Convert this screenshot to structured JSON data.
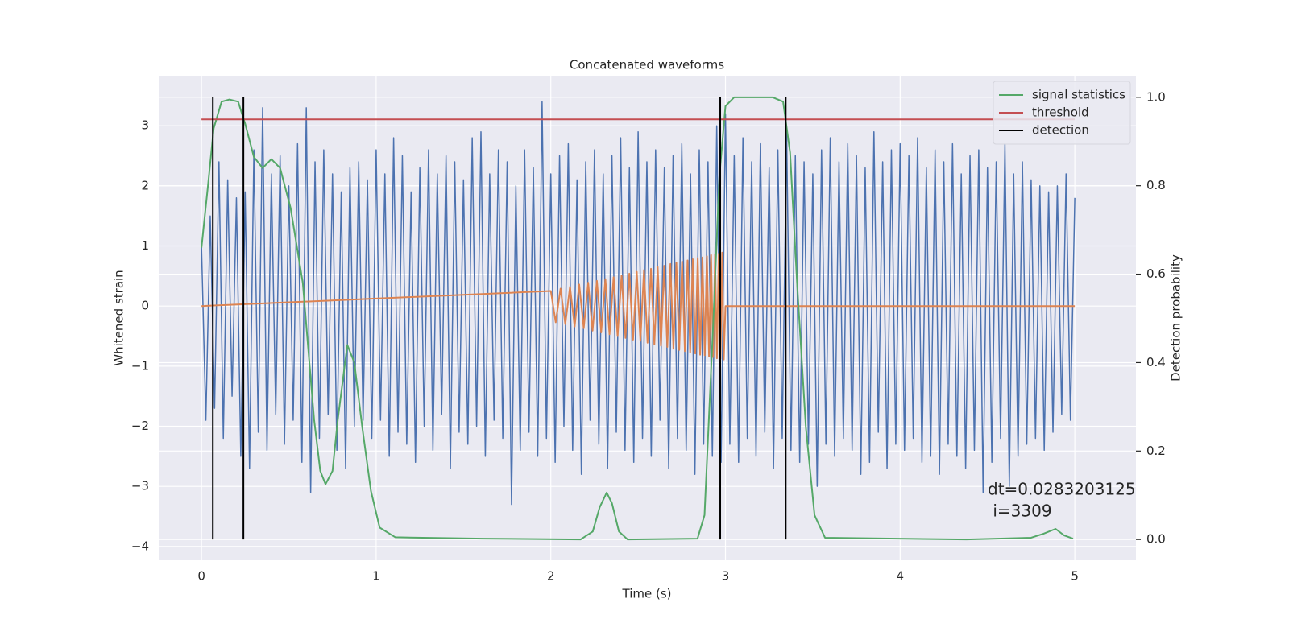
{
  "chart_data": {
    "type": "line",
    "title": "Concatenated waveforms",
    "xlabel": "Time (s)",
    "ylabel": "Whitened strain",
    "y2label": "Detection probability",
    "xlim": [
      -0.245,
      5.35
    ],
    "ylim": [
      -4.23,
      3.82
    ],
    "y2lim": [
      -0.047,
      1.047
    ],
    "xticks": [
      0,
      1,
      2,
      3,
      4,
      5
    ],
    "yticks": [
      {
        "value": -4,
        "label": "−4"
      },
      {
        "value": -3,
        "label": "−3"
      },
      {
        "value": -2,
        "label": "−2"
      },
      {
        "value": -1,
        "label": "−1"
      },
      0,
      1,
      2,
      3
    ],
    "y2ticks": [
      {
        "value": 0,
        "label": "0.0"
      },
      {
        "value": 0.2,
        "label": "0.2"
      },
      {
        "value": 0.4,
        "label": "0.4"
      },
      {
        "value": 0.6,
        "label": "0.6"
      },
      {
        "value": 0.8,
        "label": "0.8"
      },
      {
        "value": 1,
        "label": "1.0"
      }
    ],
    "grid": true,
    "legend": "upper right",
    "annotation": [
      "dt=0.0283203125",
      " i=3309"
    ],
    "series": [
      {
        "color": "#4c72b0",
        "x": [
          0,
          0.025,
          0.05,
          0.075,
          0.1,
          0.125,
          0.15,
          0.175,
          0.2,
          0.225,
          0.25,
          0.275,
          0.3,
          0.325,
          0.35,
          0.375,
          0.4,
          0.425,
          0.45,
          0.475,
          0.5,
          0.525,
          0.55,
          0.575,
          0.6,
          0.625,
          0.65,
          0.675,
          0.7,
          0.725,
          0.75,
          0.775,
          0.8,
          0.825,
          0.85,
          0.875,
          0.9,
          0.925,
          0.95,
          0.975,
          1,
          1.025,
          1.05,
          1.075,
          1.1,
          1.125,
          1.15,
          1.175,
          1.2,
          1.225,
          1.25,
          1.275,
          1.3,
          1.325,
          1.35,
          1.375,
          1.4,
          1.425,
          1.45,
          1.475,
          1.5,
          1.525,
          1.55,
          1.575,
          1.6,
          1.625,
          1.65,
          1.675,
          1.7,
          1.725,
          1.75,
          1.775,
          1.8,
          1.825,
          1.85,
          1.875,
          1.9,
          1.925,
          1.95,
          1.975,
          2,
          2.025,
          2.05,
          2.075,
          2.1,
          2.125,
          2.15,
          2.175,
          2.2,
          2.225,
          2.25,
          2.275,
          2.3,
          2.325,
          2.35,
          2.375,
          2.4,
          2.425,
          2.45,
          2.475,
          2.5,
          2.525,
          2.55,
          2.575,
          2.6,
          2.625,
          2.65,
          2.675,
          2.7,
          2.725,
          2.75,
          2.775,
          2.8,
          2.825,
          2.85,
          2.875,
          2.9,
          2.925,
          2.95,
          2.975,
          3,
          3.025,
          3.05,
          3.075,
          3.1,
          3.125,
          3.15,
          3.175,
          3.2,
          3.225,
          3.25,
          3.275,
          3.3,
          3.325,
          3.35,
          3.375,
          3.4,
          3.425,
          3.45,
          3.475,
          3.5,
          3.525,
          3.55,
          3.575,
          3.6,
          3.625,
          3.65,
          3.675,
          3.7,
          3.725,
          3.75,
          3.775,
          3.8,
          3.825,
          3.85,
          3.875,
          3.9,
          3.925,
          3.95,
          3.975,
          4,
          4.025,
          4.05,
          4.075,
          4.1,
          4.125,
          4.15,
          4.175,
          4.2,
          4.225,
          4.25,
          4.275,
          4.3,
          4.325,
          4.35,
          4.375,
          4.4,
          4.425,
          4.45,
          4.475,
          4.5,
          4.525,
          4.55,
          4.575,
          4.6,
          4.625,
          4.65,
          4.675,
          4.7,
          4.725,
          4.75,
          4.775,
          4.8,
          4.825,
          4.85,
          4.875,
          4.9,
          4.925,
          4.95,
          4.975,
          5
        ],
        "values": [
          1.0,
          -1.9,
          1.5,
          -1.7,
          2.4,
          -2.2,
          2.1,
          -1.5,
          1.8,
          -2.5,
          1.9,
          -2.7,
          2.6,
          -2.1,
          3.3,
          -2.4,
          2.2,
          -1.8,
          2.5,
          -2.3,
          2.0,
          -1.9,
          2.7,
          -2.6,
          3.3,
          -3.1,
          2.4,
          -2.2,
          2.6,
          -1.8,
          2.2,
          -2.4,
          1.9,
          -2.7,
          2.3,
          -2.0,
          2.4,
          -1.9,
          2.1,
          -2.2,
          2.6,
          -1.9,
          2.2,
          -2.5,
          2.8,
          -2.1,
          2.5,
          -2.3,
          1.9,
          -2.6,
          2.3,
          -2.0,
          2.6,
          -2.4,
          2.2,
          -1.8,
          2.5,
          -2.7,
          2.4,
          -2.1,
          2.1,
          -2.3,
          2.8,
          -2.0,
          2.9,
          -2.5,
          2.2,
          -1.9,
          2.6,
          -2.2,
          2.4,
          -3.3,
          2.0,
          -2.4,
          2.6,
          -2.1,
          2.3,
          -2.5,
          3.4,
          -2.2,
          2.2,
          -2.6,
          2.5,
          -2.0,
          2.7,
          -2.4,
          2.1,
          -2.8,
          2.4,
          -1.9,
          2.6,
          -2.3,
          2.2,
          -2.7,
          2.5,
          -2.1,
          2.8,
          -2.4,
          2.3,
          -2.6,
          2.9,
          -2.2,
          2.4,
          -2.5,
          2.6,
          -1.9,
          2.3,
          -2.7,
          2.5,
          -2.2,
          2.7,
          -2.4,
          2.2,
          -2.8,
          2.6,
          -2.3,
          2.4,
          -2.5,
          3.0,
          -2.6,
          3.2,
          -2.3,
          2.5,
          -2.6,
          2.8,
          -2.2,
          2.4,
          -2.5,
          2.7,
          -2.1,
          2.3,
          -2.7,
          2.6,
          -2.2,
          2.9,
          -2.4,
          2.5,
          -2.6,
          2.4,
          -2.3,
          2.2,
          -3.0,
          2.6,
          -2.3,
          2.8,
          -2.5,
          2.4,
          -2.2,
          2.7,
          -2.4,
          2.5,
          -2.8,
          2.3,
          -2.6,
          2.9,
          -2.1,
          2.4,
          -2.7,
          2.6,
          -2.3,
          2.7,
          -2.4,
          2.5,
          -2.2,
          2.8,
          -2.6,
          2.3,
          -2.5,
          2.6,
          -2.8,
          2.4,
          -2.3,
          2.7,
          -2.5,
          2.2,
          -2.7,
          2.5,
          -2.4,
          2.6,
          -3.1,
          2.3,
          -2.6,
          2.4,
          -2.2,
          2.7,
          -3.0,
          2.2,
          -2.5,
          2.4,
          -2.3,
          2.1,
          -2.2,
          2.0,
          -2.4,
          1.9,
          -2.1,
          2.0,
          -1.8,
          2.2,
          -1.9,
          1.8
        ]
      },
      {
        "color": "#dd8452",
        "x": [
          0,
          2,
          2.028,
          2.0556,
          2.0829,
          2.1099,
          2.1364,
          2.1626,
          2.1885,
          2.214,
          2.2391,
          2.2639,
          2.2884,
          2.3124,
          2.3361,
          2.3595,
          2.3825,
          2.4052,
          2.4274,
          2.4494,
          2.4709,
          2.4922,
          2.513,
          2.5335,
          2.5537,
          2.5735,
          2.5929,
          2.612,
          2.6307,
          2.6491,
          2.6671,
          2.6847,
          2.702,
          2.7189,
          2.7354,
          2.7516,
          2.7675,
          2.7829,
          2.798,
          2.8128,
          2.8272,
          2.8412,
          2.8549,
          2.8682,
          2.8811,
          2.8937,
          2.9059,
          2.9177,
          2.9292,
          2.9403,
          2.951,
          2.9614,
          2.9714,
          2.9811,
          2.9904,
          3,
          5
        ],
        "values": [
          0,
          0.25,
          -0.27,
          0.29,
          -0.3,
          0.32,
          -0.34,
          0.36,
          -0.37,
          0.39,
          -0.41,
          0.42,
          -0.44,
          0.45,
          -0.47,
          0.48,
          -0.5,
          0.51,
          -0.53,
          0.54,
          -0.56,
          0.57,
          -0.58,
          0.6,
          -0.61,
          0.62,
          -0.64,
          0.65,
          -0.66,
          0.67,
          -0.68,
          0.7,
          -0.71,
          0.72,
          -0.73,
          0.74,
          -0.75,
          0.76,
          -0.77,
          0.78,
          -0.79,
          0.8,
          -0.81,
          0.81,
          -0.82,
          0.83,
          -0.84,
          0.85,
          -0.85,
          0.86,
          -0.87,
          0.87,
          -0.88,
          0.89,
          -0.89,
          0,
          0
        ]
      },
      {
        "name": "signal statistics",
        "color": "#55a868",
        "axis": "y2",
        "x": [
          0,
          0.037,
          0.07,
          0.115,
          0.16,
          0.21,
          0.25,
          0.3,
          0.35,
          0.4,
          0.45,
          0.51,
          0.58,
          0.645,
          0.68,
          0.71,
          0.75,
          0.78,
          0.835,
          0.875,
          0.92,
          0.97,
          1.02,
          1.11,
          1.61,
          2.17,
          2.24,
          2.28,
          2.32,
          2.35,
          2.39,
          2.44,
          2.84,
          2.88,
          2.93,
          2.965,
          3,
          3.05,
          3.27,
          3.33,
          3.37,
          3.41,
          3.46,
          3.51,
          3.57,
          4.38,
          4.75,
          4.82,
          4.89,
          4.94,
          4.99
        ],
        "values": [
          0.66,
          0.8,
          0.93,
          0.99,
          0.995,
          0.99,
          0.94,
          0.865,
          0.84,
          0.86,
          0.84,
          0.75,
          0.58,
          0.27,
          0.155,
          0.125,
          0.155,
          0.27,
          0.44,
          0.4,
          0.255,
          0.11,
          0.027,
          0.005,
          0.002,
          0,
          0.018,
          0.073,
          0.106,
          0.082,
          0.018,
          0,
          0.002,
          0.055,
          0.49,
          0.82,
          0.98,
          1,
          1,
          0.99,
          0.875,
          0.58,
          0.255,
          0.055,
          0.004,
          0,
          0.004,
          0.013,
          0.024,
          0.009,
          0.002
        ]
      },
      {
        "name": "threshold",
        "color": "#c44e52",
        "axis": "y2",
        "x": [
          0,
          5
        ],
        "values": [
          0.95,
          0.95
        ]
      },
      {
        "name": "detection",
        "color": "#000000",
        "axis": "y2",
        "x": [
          0.065,
          0.24,
          2.97,
          3.345
        ],
        "ymin": 0,
        "ymax": 1
      }
    ]
  }
}
